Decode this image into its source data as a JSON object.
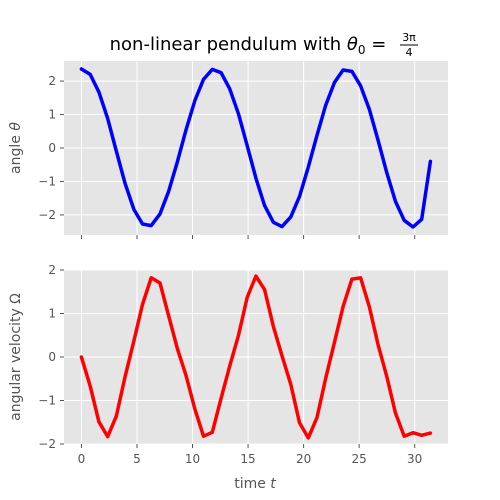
{
  "chart_data": [
    {
      "type": "line",
      "title": "non-linear pendulum with θ₀ = 3π/4",
      "title_parts": {
        "prefix": "non-linear pendulum with ",
        "var": "θ",
        "sub": "0",
        "eq": " = ",
        "num": "3π",
        "den": "4"
      },
      "xlabel": "",
      "ylabel": "angle θ",
      "ylabel_parts": {
        "text": "angle ",
        "var": "θ"
      },
      "xlim": [
        -1.57,
        33.0
      ],
      "ylim": [
        -2.6,
        2.6
      ],
      "yticks": [
        -2,
        -1,
        0,
        1,
        2
      ],
      "ytick_labels": [
        "−2",
        "−1",
        "0",
        "1",
        "2"
      ],
      "grid": true,
      "series": [
        {
          "name": "angle θ",
          "color": "#0000ff",
          "x": [
            0,
            0.79,
            1.57,
            2.36,
            3.14,
            3.93,
            4.71,
            5.5,
            6.28,
            7.07,
            7.85,
            8.64,
            9.42,
            10.21,
            10.99,
            11.78,
            12.57,
            13.35,
            14.14,
            14.92,
            15.71,
            16.49,
            17.28,
            18.06,
            18.85,
            19.63,
            20.42,
            21.21,
            21.99,
            22.78,
            23.56,
            24.35,
            25.13,
            25.92,
            26.7,
            27.49,
            28.27,
            29.06,
            29.85,
            30.63,
            31.42
          ],
          "y": [
            2.36,
            2.2,
            1.67,
            0.88,
            -0.09,
            -1.06,
            -1.83,
            -2.27,
            -2.32,
            -1.97,
            -1.3,
            -0.41,
            0.55,
            1.42,
            2.05,
            2.35,
            2.25,
            1.77,
            1.02,
            0.07,
            -0.9,
            -1.72,
            -2.22,
            -2.35,
            -2.06,
            -1.45,
            -0.57,
            0.38,
            1.28,
            1.96,
            2.33,
            2.29,
            1.86,
            1.15,
            0.24,
            -0.74,
            -1.6,
            -2.16,
            -2.36,
            -2.13,
            -0.4
          ]
        }
      ]
    },
    {
      "type": "line",
      "title": "",
      "xlabel": "time t",
      "xlabel_parts": {
        "text": "time ",
        "var": "t"
      },
      "ylabel": "angular velocity Ω",
      "xlim": [
        -1.57,
        33.0
      ],
      "ylim": [
        -2.0,
        2.0
      ],
      "xticks": [
        0,
        5,
        10,
        15,
        20,
        25,
        30
      ],
      "xtick_labels": [
        "0",
        "5",
        "10",
        "15",
        "20",
        "25",
        "30"
      ],
      "yticks": [
        -2,
        -1,
        0,
        1,
        2
      ],
      "ytick_labels": [
        "−2",
        "−1",
        "0",
        "1",
        "2"
      ],
      "grid": true,
      "series": [
        {
          "name": "angular velocity Ω",
          "color": "#ff0000",
          "x": [
            0,
            0.79,
            1.57,
            2.36,
            3.14,
            3.93,
            4.71,
            5.5,
            6.28,
            7.07,
            7.85,
            8.64,
            9.42,
            10.21,
            10.99,
            11.78,
            12.57,
            13.35,
            14.14,
            14.92,
            15.71,
            16.49,
            17.28,
            18.06,
            18.85,
            19.63,
            20.42,
            21.21,
            21.99,
            22.78,
            23.56,
            24.35,
            25.13,
            25.92,
            26.7,
            27.49,
            28.27,
            29.06,
            29.85,
            30.63,
            31.42
          ],
          "y": [
            0.0,
            -0.67,
            -1.49,
            -1.83,
            -1.36,
            -0.45,
            0.36,
            1.21,
            1.82,
            1.7,
            0.95,
            0.19,
            -0.43,
            -1.2,
            -1.82,
            -1.73,
            -0.95,
            -0.21,
            0.5,
            1.37,
            1.86,
            1.55,
            0.7,
            0.03,
            -0.63,
            -1.51,
            -1.86,
            -1.39,
            -0.49,
            0.34,
            1.16,
            1.79,
            1.82,
            1.15,
            0.29,
            -0.45,
            -1.29,
            -1.82,
            -1.74,
            -1.8,
            -1.75
          ]
        }
      ]
    }
  ]
}
